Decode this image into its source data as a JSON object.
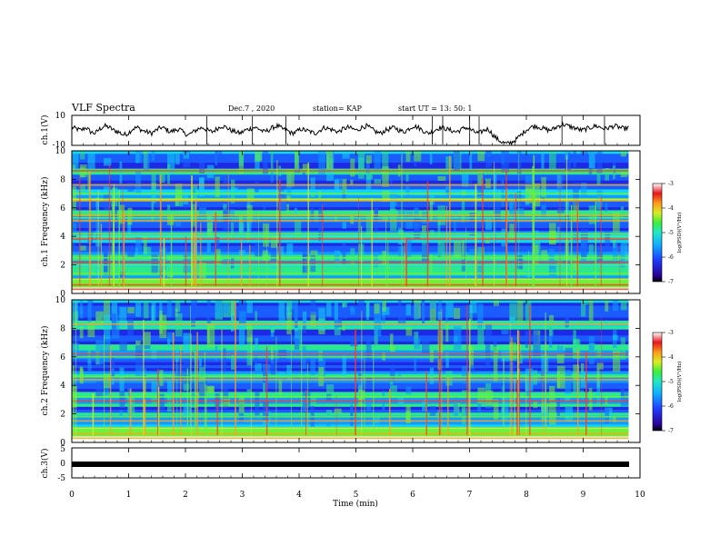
{
  "header": {
    "title": "VLF Spectra",
    "date": "Dec.7 , 2020",
    "station": "station= KAP",
    "start": "start  UT =  13: 50: 1"
  },
  "chart_data": [
    {
      "type": "line",
      "panel": "ch1-waveform",
      "ylabel": "ch.1(V)",
      "ylim": [
        -10,
        10
      ],
      "yticks": [
        "10",
        "-10"
      ],
      "xlim": [
        0,
        10
      ],
      "x_end": 9.8,
      "series": [
        {
          "values": [
            2,
            1,
            0,
            2,
            -1,
            -2,
            1,
            3,
            2,
            0,
            -1,
            -3,
            -2,
            1,
            2,
            0,
            -1,
            -2,
            0,
            2,
            1,
            -1,
            0,
            1,
            -2,
            -3,
            -1,
            1,
            2,
            0,
            -1,
            1,
            3,
            2,
            0,
            -1,
            -2,
            0,
            1,
            2,
            1,
            -1,
            0,
            2,
            3,
            1,
            0,
            -2,
            -1,
            1,
            0,
            -1,
            -2,
            0,
            2,
            1,
            0,
            -1,
            1,
            2,
            1,
            0,
            2,
            3,
            1,
            -1,
            -2,
            0,
            1,
            2,
            0,
            -1,
            1,
            3,
            2,
            0,
            -2,
            -1,
            1,
            2,
            1,
            0,
            -1,
            0,
            2,
            1,
            -1,
            -2,
            0,
            1,
            -3,
            -6,
            -8,
            -9,
            -8,
            -6,
            -3,
            0,
            2,
            3,
            2,
            1,
            0,
            1,
            3,
            4,
            3,
            2,
            1,
            0,
            1,
            2,
            3,
            2,
            1,
            2,
            3,
            2,
            1,
            2
          ]
        }
      ]
    },
    {
      "type": "heatmap",
      "panel": "ch1-spectrogram",
      "ylabel": "ch.1 Frequency (kHz)",
      "ylim": [
        0,
        10
      ],
      "yticks": [
        "0",
        "2",
        "4",
        "6",
        "8",
        "10"
      ],
      "xlim": [
        0,
        10
      ],
      "x_end": 9.8,
      "zlabel": "log(PSD)(V²/Hz)",
      "zlim": [
        -7,
        -3
      ],
      "zticks": [
        "-3",
        "-4",
        "-5",
        "-6",
        "-7"
      ],
      "dark_bands_khz": [
        [
          3.0,
          3.6
        ],
        [
          4.3,
          5.0
        ],
        [
          5.9,
          6.4
        ],
        [
          7.2,
          8.4
        ],
        [
          8.8,
          9.7
        ]
      ],
      "line_khz": [
        0.3,
        0.6,
        1.0,
        1.4,
        2.0,
        2.2,
        2.5,
        3.8,
        4.0,
        4.2,
        5.1,
        5.3,
        5.5,
        6.5,
        6.6,
        7.0,
        7.6,
        8.6
      ]
    },
    {
      "type": "heatmap",
      "panel": "ch2-spectrogram",
      "ylabel": "ch.2 Frequency (kHz)",
      "ylim": [
        0,
        10
      ],
      "yticks": [
        "0",
        "2",
        "4",
        "6",
        "8",
        "10"
      ],
      "xlim": [
        0,
        10
      ],
      "x_end": 9.8,
      "zlabel": "log(PSD)(V²/Hz)",
      "zlim": [
        -7,
        -3
      ],
      "zticks": [
        "-3",
        "-4",
        "-5",
        "-6",
        "-7"
      ],
      "dark_bands_khz": [
        [
          2.0,
          2.6
        ],
        [
          3.6,
          4.1
        ],
        [
          5.0,
          5.8
        ],
        [
          6.8,
          8.0
        ],
        [
          8.5,
          9.8
        ]
      ],
      "line_khz": [
        0.3,
        0.6,
        1.0,
        1.5,
        1.8,
        2.9,
        3.2,
        4.4,
        4.6,
        6.0,
        6.2,
        8.3
      ]
    },
    {
      "type": "line",
      "panel": "ch3-waveform",
      "ylabel": "ch.3(V)",
      "ylim": [
        -5,
        5
      ],
      "yticks": [
        "5",
        "0",
        "-5"
      ],
      "xlim": [
        0,
        10
      ],
      "x_end": 9.8,
      "series": [
        {
          "values": [
            0,
            0
          ]
        }
      ]
    }
  ],
  "xaxis": {
    "label": "Time (min)",
    "ticks": [
      "0",
      "1",
      "2",
      "3",
      "4",
      "5",
      "6",
      "7",
      "8",
      "9",
      "10"
    ]
  },
  "colormap": [
    "#2a0094",
    "#1e28e6",
    "#1a5cff",
    "#0f9bff",
    "#12d6ee",
    "#2be88c",
    "#6ef03c",
    "#d6ee22",
    "#ffa21a",
    "#ff3c1e",
    "#d60014",
    "#ffffff"
  ]
}
